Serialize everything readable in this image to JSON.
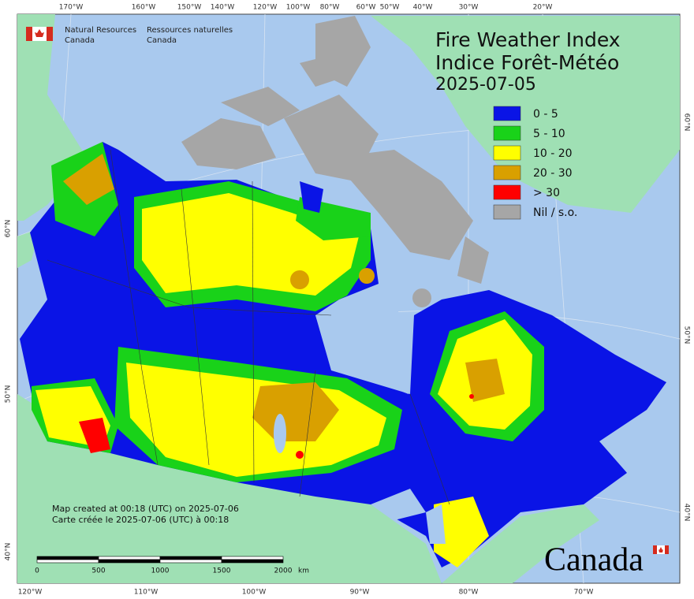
{
  "header": {
    "agency_en": [
      "Natural Resources",
      "Canada"
    ],
    "agency_fr": [
      "Ressources naturelles",
      "Canada"
    ]
  },
  "title": [
    "Fire Weather Index",
    "Indice Forêt-Météo"
  ],
  "date": "2025-07-05",
  "legend": [
    {
      "label": "0 - 5",
      "color": "#0a14e6"
    },
    {
      "label": "5 - 10",
      "color": "#19d219"
    },
    {
      "label": "10 - 20",
      "color": "#ffff00"
    },
    {
      "label": "20 - 30",
      "color": "#d9a000"
    },
    {
      "label": "> 30",
      "color": "#ff0000"
    },
    {
      "label": "Nil / s.o.",
      "color": "#a6a6a6"
    }
  ],
  "notes": [
    "Map created at 00:18 (UTC) on 2025-07-06",
    "Carte créée le 2025-07-06 (UTC) à 00:18"
  ],
  "scale_bar": {
    "ticks": [
      0,
      500,
      1000,
      1500,
      2000
    ],
    "unit": "km"
  },
  "graticule": {
    "top": [
      "170°W",
      "160°W",
      "150°W",
      "140°W",
      "120°W",
      "100°W",
      "80°W",
      "60°W",
      "50°W",
      "40°W",
      "30°W",
      "20°W"
    ],
    "bottom": [
      "120°W",
      "110°W",
      "100°W",
      "90°W",
      "80°W",
      "70°W"
    ],
    "left": [
      "60°N",
      "50°N",
      "40°N"
    ],
    "right": [
      "60°N",
      "50°N",
      "40°N"
    ]
  },
  "wordmark": "Canada"
}
